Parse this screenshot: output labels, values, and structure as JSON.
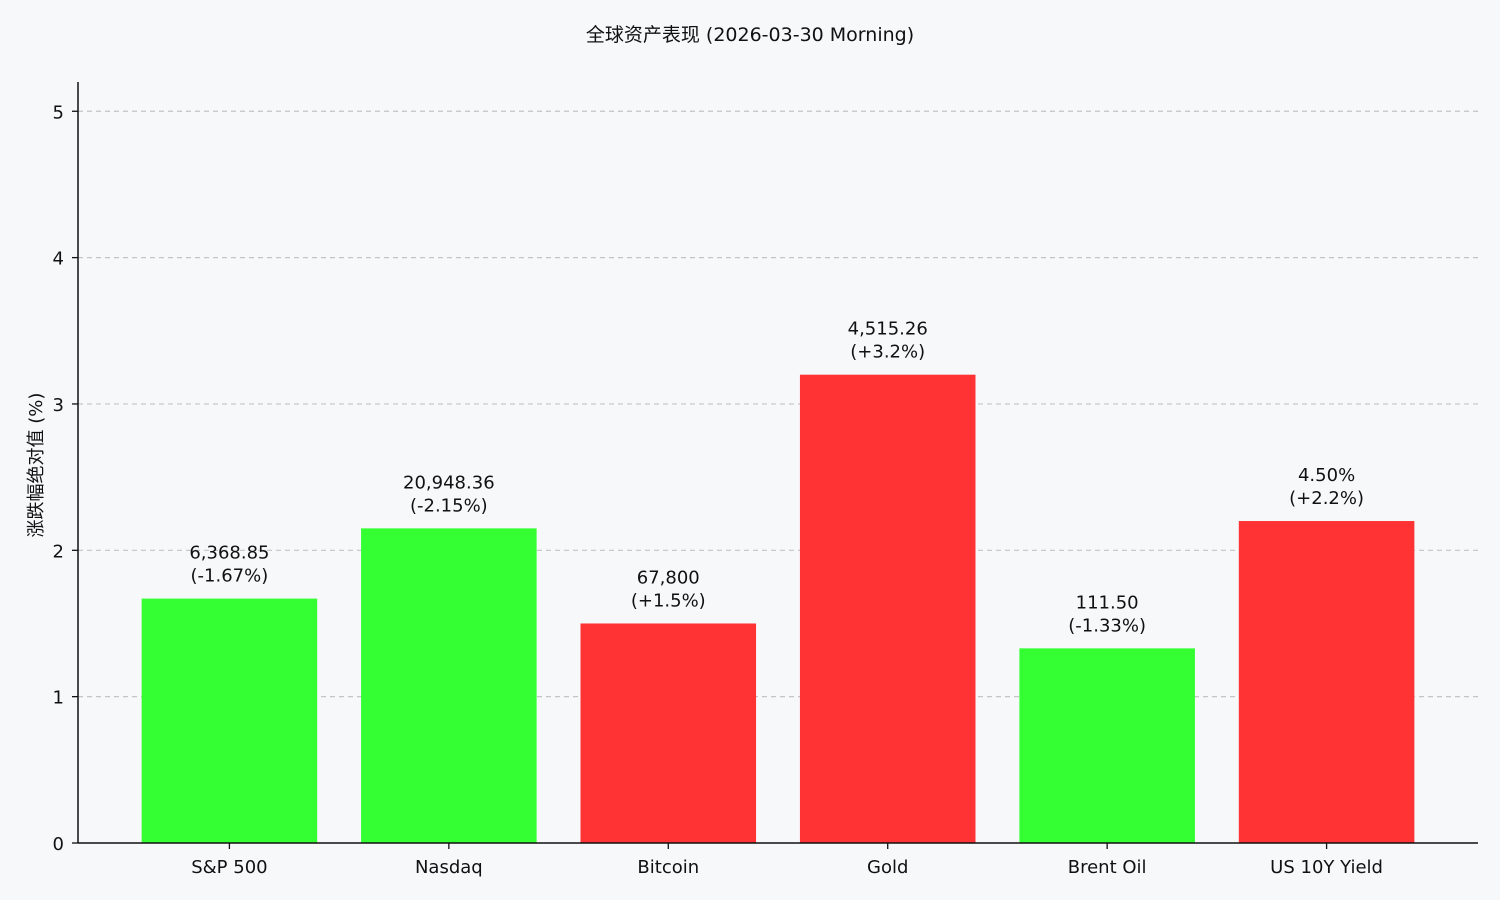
{
  "chart_data": {
    "type": "bar",
    "title": "全球资产表现 (2026-03-30 Morning)",
    "xlabel": "",
    "ylabel": "涨跌幅绝对值 (%)",
    "ylim": [
      0,
      5.2
    ],
    "yticks": [
      "0",
      "1",
      "2",
      "3",
      "4",
      "5"
    ],
    "grid": "horizontal dashed",
    "categories": [
      "S&P 500",
      "Nasdaq",
      "Bitcoin",
      "Gold",
      "Brent Oil",
      "US 10Y Yield"
    ],
    "values": [
      1.67,
      2.15,
      1.5,
      3.2,
      1.33,
      2.2
    ],
    "price_labels": [
      "6,368.85",
      "20,948.36",
      "67,800",
      "4,515.26",
      "111.50",
      "4.50%"
    ],
    "change_labels": [
      "(-1.67%)",
      "(-2.15%)",
      "(+1.5%)",
      "(+3.2%)",
      "(-1.33%)",
      "(+2.2%)"
    ],
    "direction": [
      "down",
      "down",
      "up",
      "up",
      "down",
      "up"
    ],
    "colors": {
      "up": "#ff3333",
      "down": "#33ff33",
      "grid": "#c4c4c4",
      "axis": "#111111",
      "background": "#f7f8fa"
    }
  }
}
